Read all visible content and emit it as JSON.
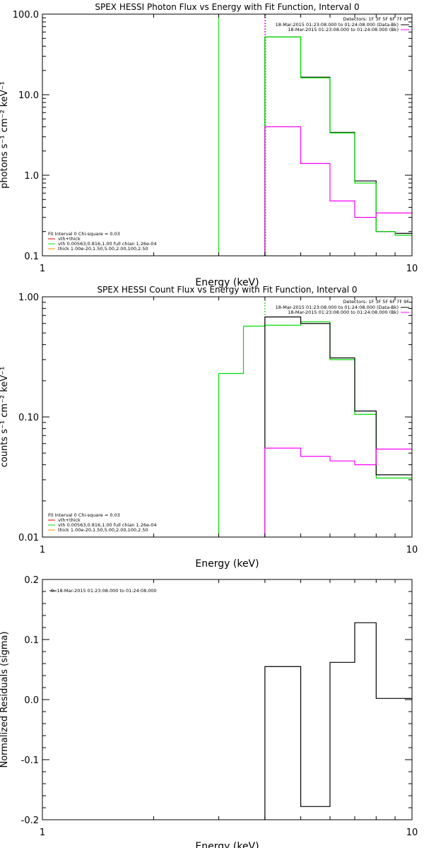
{
  "colors": {
    "axis": "#000000",
    "data": "#000000",
    "background": "#ff00ff",
    "model": "#00dd00",
    "vth": "#00dd00",
    "thick": "#ff8800",
    "vth_plus_thick": "#dd0000"
  },
  "chart_data": [
    {
      "id": "photon",
      "type": "line",
      "title": "SPEX HESSI Photon Flux vs Energy with Fit Function, Interval 0",
      "xlabel": "Energy (keV)",
      "ylabel": "photons s⁻¹ cm⁻² keV⁻¹",
      "xscale": "log",
      "yscale": "log",
      "xlim": [
        1,
        10
      ],
      "ylim": [
        0.1,
        100
      ],
      "xticks": [
        {
          "v": 1,
          "label": "1"
        },
        {
          "v": 10,
          "label": "10"
        }
      ],
      "yticks": [
        {
          "v": 0.1,
          "label": "0.1"
        },
        {
          "v": 1,
          "label": "1.0"
        },
        {
          "v": 10,
          "label": "10.0"
        },
        {
          "v": 100,
          "label": "100.0"
        }
      ],
      "vlines": [
        {
          "x": 3,
          "color_key": "model",
          "style": "solid"
        },
        {
          "x": 4,
          "color_key": "background",
          "style": "dotted"
        },
        {
          "x": 4,
          "color_key": "model",
          "style": "dotted"
        }
      ],
      "legend_tr": {
        "detectors": "Detectors: 1F 3F 5F 6F 7F 9F",
        "lines": [
          {
            "text": "18-Mar-2015 01:23:08.000 to 01:24:08.000 (Data-Bk)",
            "color_key": "data"
          },
          {
            "text": "18-Mar-2015 01:23:08.000 to 01:24:08.000 (Bk)",
            "color_key": "background"
          }
        ]
      },
      "legend_bl": [
        {
          "text": "Fit Interval  0    Chi-square = 0.03",
          "color_key": null
        },
        {
          "text": "vth+thick",
          "color_key": "vth_plus_thick"
        },
        {
          "text": "vth 0.00563,0.816,1.00   full chian 1.26e-04",
          "color_key": "vth"
        },
        {
          "text": "thick 1.00e-20,1.50,5.00,2.00,100,2.50",
          "color_key": "thick"
        }
      ],
      "series": [
        {
          "color_key": "data",
          "edges": [
            4,
            5,
            6,
            7,
            8,
            9,
            10
          ],
          "values": [
            52,
            16.5,
            3.4,
            0.85,
            0.2,
            0.19
          ]
        },
        {
          "color_key": "model",
          "edges": [
            4,
            5,
            6,
            7,
            8,
            9,
            10
          ],
          "values": [
            52,
            16.2,
            3.35,
            0.8,
            0.2,
            0.18
          ]
        },
        {
          "color_key": "background",
          "edges": [
            4,
            5,
            6,
            7,
            8,
            9,
            10
          ],
          "values": [
            4.0,
            1.4,
            0.48,
            0.3,
            0.34,
            0.34
          ]
        }
      ]
    },
    {
      "id": "count",
      "type": "line",
      "title": "SPEX HESSI Count Flux vs Energy with Fit Function, Interval 0",
      "xlabel": "Energy (keV)",
      "ylabel": "counts s⁻¹ cm⁻² keV⁻¹",
      "xscale": "log",
      "yscale": "log",
      "xlim": [
        1,
        10
      ],
      "ylim": [
        0.01,
        1
      ],
      "xticks": [
        {
          "v": 1,
          "label": "1"
        },
        {
          "v": 10,
          "label": "10"
        }
      ],
      "yticks": [
        {
          "v": 0.01,
          "label": "0.01"
        },
        {
          "v": 0.1,
          "label": "0.10"
        },
        {
          "v": 1,
          "label": "1.00"
        }
      ],
      "vlines": [
        {
          "x": 4,
          "color_key": "background",
          "style": "dotted"
        },
        {
          "x": 4,
          "color_key": "model",
          "style": "dotted"
        }
      ],
      "legend_tr": {
        "detectors": "Detectors: 1F 3F 5F 6F 7F 9F",
        "lines": [
          {
            "text": "18-Mar-2015 01:23:08.000 to 01:24:08.000 (Data-Bk)",
            "color_key": "data"
          },
          {
            "text": "18-Mar-2015 01:23:08.000 to 01:24:08.000 (Bk)",
            "color_key": "background"
          }
        ]
      },
      "legend_bl": [
        {
          "text": "Fit Interval  0    Chi-square = 0.03",
          "color_key": null
        },
        {
          "text": "vth+thick",
          "color_key": "vth_plus_thick"
        },
        {
          "text": "vth 0.00563,0.816,1.00   full chian 1.26e-04",
          "color_key": "vth"
        },
        {
          "text": "thick 1.00e-20,1.50,5.00,2.00,100,2.50",
          "color_key": "thick"
        }
      ],
      "series": [
        {
          "color_key": "model",
          "edges": [
            3,
            3.5,
            4,
            5,
            6,
            7,
            8,
            9,
            10
          ],
          "values": [
            0.23,
            0.57,
            0.58,
            0.62,
            0.3,
            0.105,
            0.031,
            0.031
          ]
        },
        {
          "color_key": "data",
          "edges": [
            4,
            5,
            6,
            7,
            8,
            9,
            10
          ],
          "values": [
            0.68,
            0.6,
            0.31,
            0.112,
            0.033,
            0.033
          ]
        },
        {
          "color_key": "background",
          "edges": [
            4,
            5,
            6,
            7,
            8,
            9,
            10
          ],
          "values": [
            0.055,
            0.047,
            0.043,
            0.04,
            0.054,
            0.054
          ]
        }
      ]
    },
    {
      "id": "resid",
      "type": "line",
      "title": "",
      "xlabel": "Energy (keV)",
      "ylabel": "Normalized Residuals (sigma)",
      "xscale": "log",
      "yscale": "linear",
      "xlim": [
        1,
        10
      ],
      "ylim": [
        -0.2,
        0.2
      ],
      "xticks": [
        {
          "v": 1,
          "label": "1"
        },
        {
          "v": 10,
          "label": "10"
        }
      ],
      "yticks": [
        {
          "v": -0.2,
          "label": "-0.2"
        },
        {
          "v": -0.1,
          "label": "-0.1"
        },
        {
          "v": 0,
          "label": "0.0"
        },
        {
          "v": 0.1,
          "label": "0.1"
        },
        {
          "v": 0.2,
          "label": "0.2"
        }
      ],
      "vlines": [],
      "legend_tl": [
        {
          "text": "0. 18-Mar-2015 01:23:08.000 to 01:24:08.000",
          "color_key": "data"
        }
      ],
      "series": [
        {
          "color_key": "data",
          "edges": [
            4,
            5,
            6,
            7,
            8,
            9,
            10
          ],
          "values": [
            0.055,
            -0.178,
            0.062,
            0.128,
            0.002,
            0.002
          ]
        }
      ]
    }
  ]
}
